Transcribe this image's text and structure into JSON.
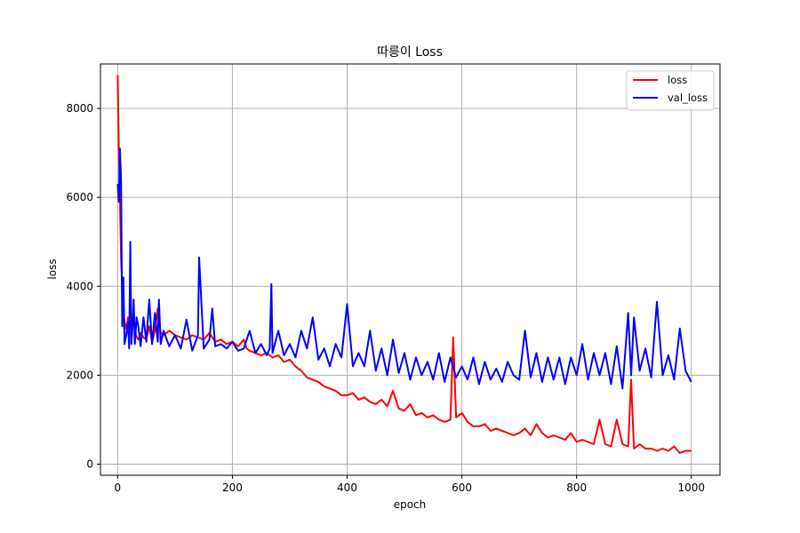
{
  "chart_data": {
    "type": "line",
    "title": "따릉이 Loss",
    "xlabel": "epoch",
    "ylabel": "loss",
    "xlim": [
      -30,
      1050
    ],
    "ylim": [
      -250,
      9000
    ],
    "xticks": [
      0,
      200,
      400,
      600,
      800,
      1000
    ],
    "yticks": [
      0,
      2000,
      4000,
      6000,
      8000
    ],
    "grid": true,
    "legend_position": "top-right",
    "series": [
      {
        "name": "loss",
        "color": "#ff0000",
        "x": [
          0,
          2,
          4,
          6,
          8,
          10,
          12,
          15,
          18,
          20,
          24,
          28,
          32,
          36,
          40,
          45,
          50,
          55,
          60,
          65,
          70,
          75,
          80,
          90,
          100,
          110,
          120,
          130,
          140,
          150,
          160,
          170,
          180,
          190,
          200,
          210,
          220,
          225,
          230,
          240,
          250,
          260,
          270,
          280,
          290,
          300,
          310,
          320,
          330,
          340,
          350,
          360,
          370,
          380,
          390,
          400,
          410,
          420,
          430,
          440,
          450,
          460,
          470,
          480,
          490,
          500,
          510,
          520,
          530,
          540,
          550,
          560,
          570,
          580,
          585,
          590,
          600,
          610,
          620,
          630,
          640,
          650,
          660,
          670,
          680,
          690,
          700,
          710,
          720,
          730,
          740,
          750,
          760,
          770,
          780,
          790,
          800,
          810,
          820,
          830,
          840,
          850,
          860,
          870,
          880,
          890,
          895,
          900,
          910,
          920,
          930,
          940,
          950,
          960,
          970,
          980,
          990,
          1000
        ],
        "y": [
          8750,
          7100,
          6000,
          4600,
          3900,
          3400,
          3200,
          3050,
          3300,
          3000,
          3200,
          3350,
          2900,
          2800,
          2950,
          2850,
          2800,
          3100,
          2750,
          3000,
          3500,
          2950,
          2900,
          3000,
          2900,
          2850,
          2800,
          2900,
          2850,
          2800,
          2950,
          2750,
          2800,
          2700,
          2750,
          2650,
          2800,
          2600,
          2550,
          2500,
          2450,
          2500,
          2400,
          2450,
          2300,
          2350,
          2200,
          2100,
          1950,
          1900,
          1850,
          1750,
          1700,
          1650,
          1550,
          1550,
          1600,
          1450,
          1500,
          1400,
          1350,
          1450,
          1300,
          1650,
          1250,
          1200,
          1350,
          1100,
          1150,
          1050,
          1100,
          1000,
          950,
          1000,
          2850,
          1050,
          1150,
          950,
          850,
          850,
          900,
          750,
          800,
          750,
          700,
          650,
          700,
          800,
          650,
          900,
          700,
          600,
          650,
          600,
          550,
          700,
          500,
          550,
          500,
          450,
          1000,
          450,
          400,
          1000,
          450,
          400,
          1900,
          350,
          450,
          350,
          350,
          300,
          350,
          300,
          400,
          250,
          300,
          300
        ]
      },
      {
        "name": "val_loss",
        "color": "#0000ff",
        "x": [
          0,
          2,
          4,
          6,
          8,
          10,
          12,
          15,
          18,
          20,
          22,
          24,
          26,
          28,
          30,
          33,
          36,
          40,
          45,
          50,
          55,
          60,
          65,
          70,
          72,
          75,
          80,
          90,
          100,
          110,
          120,
          130,
          140,
          142,
          150,
          160,
          165,
          170,
          180,
          190,
          200,
          210,
          220,
          230,
          240,
          250,
          260,
          265,
          268,
          270,
          280,
          290,
          300,
          310,
          320,
          330,
          340,
          350,
          360,
          370,
          380,
          390,
          400,
          410,
          420,
          430,
          440,
          450,
          460,
          470,
          480,
          490,
          500,
          510,
          520,
          530,
          540,
          550,
          560,
          570,
          580,
          590,
          600,
          610,
          620,
          630,
          640,
          650,
          660,
          670,
          680,
          690,
          700,
          710,
          720,
          730,
          740,
          750,
          760,
          770,
          780,
          790,
          800,
          810,
          820,
          830,
          840,
          850,
          860,
          870,
          880,
          890,
          895,
          900,
          910,
          920,
          930,
          940,
          950,
          960,
          970,
          980,
          990,
          1000
        ],
        "y": [
          6300,
          5900,
          7100,
          6400,
          3100,
          4200,
          2700,
          2900,
          3200,
          2600,
          5000,
          2700,
          3100,
          3700,
          2700,
          3300,
          3100,
          2650,
          3300,
          2750,
          3700,
          2700,
          3400,
          2750,
          3700,
          2700,
          3000,
          2650,
          2900,
          2600,
          3250,
          2550,
          2900,
          4650,
          2600,
          2800,
          3500,
          2650,
          2700,
          2600,
          2750,
          2550,
          2600,
          3000,
          2500,
          2700,
          2450,
          2600,
          4050,
          2500,
          3000,
          2450,
          2700,
          2400,
          3000,
          2600,
          3300,
          2350,
          2600,
          2200,
          2700,
          2400,
          3600,
          2200,
          2500,
          2200,
          3000,
          2100,
          2600,
          2000,
          2800,
          2050,
          2500,
          1900,
          2400,
          2000,
          2300,
          1900,
          2500,
          1850,
          2400,
          1950,
          2200,
          1900,
          2400,
          1800,
          2300,
          1900,
          2150,
          1850,
          2300,
          2000,
          1900,
          3000,
          1950,
          2500,
          1850,
          2400,
          1900,
          2400,
          1800,
          2400,
          2000,
          2700,
          1900,
          2500,
          2000,
          2500,
          1800,
          2650,
          1700,
          3400,
          2000,
          3300,
          2100,
          2600,
          1950,
          3650,
          2000,
          2450,
          1900,
          3050,
          2100,
          1850
        ]
      }
    ]
  }
}
